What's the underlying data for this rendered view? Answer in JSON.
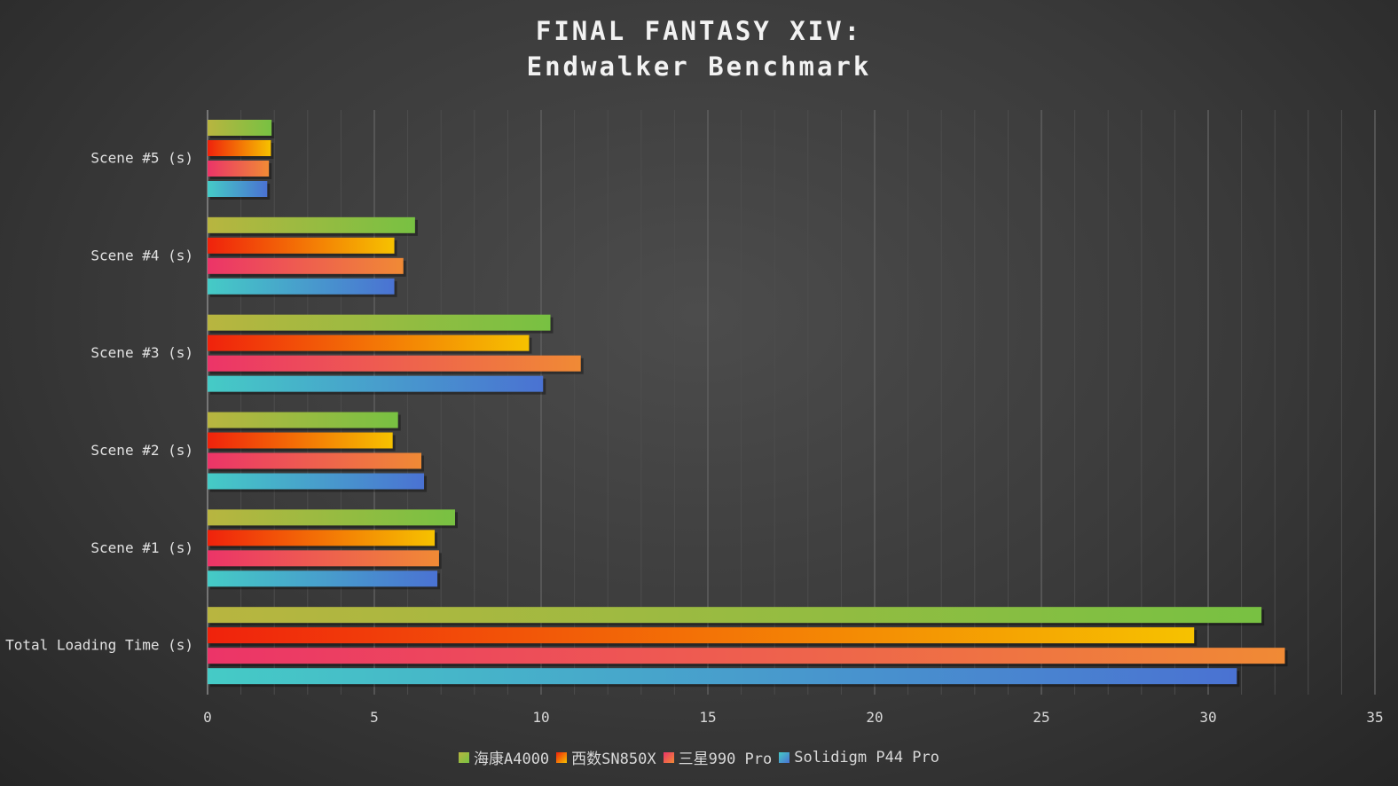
{
  "chart_data": {
    "type": "bar",
    "orientation": "horizontal",
    "title_line1": "FINAL FANTASY XIV:",
    "title_line2": "Endwalker Benchmark",
    "categories": [
      "Scene #5 (s)",
      "Scene #4 (s)",
      "Scene #3 (s)",
      "Scene #2 (s)",
      "Scene #1 (s)",
      "Total Loading Time (s)"
    ],
    "series": [
      {
        "name": "海康A4000",
        "values": [
          1.92,
          6.22,
          10.28,
          5.71,
          7.42,
          31.6
        ],
        "colors": [
          "#b8b540",
          "#78c142"
        ]
      },
      {
        "name": "西数SN850X",
        "values": [
          1.9,
          5.6,
          9.64,
          5.55,
          6.81,
          29.58
        ],
        "colors": [
          "#f0220c",
          "#f6c200"
        ]
      },
      {
        "name": "三星990 Pro",
        "values": [
          1.84,
          5.87,
          11.19,
          6.41,
          6.94,
          32.3
        ],
        "colors": [
          "#ec3468",
          "#f08a35"
        ]
      },
      {
        "name": "Solidigm P44 Pro",
        "values": [
          1.79,
          5.6,
          10.06,
          6.49,
          6.89,
          30.86
        ],
        "colors": [
          "#45cbc6",
          "#4a72d2"
        ]
      }
    ],
    "xlim": [
      0,
      35
    ],
    "xticks": [
      "0",
      "5",
      "10",
      "15",
      "20",
      "25",
      "30",
      "35"
    ],
    "grid": true,
    "legend": "bottom"
  }
}
